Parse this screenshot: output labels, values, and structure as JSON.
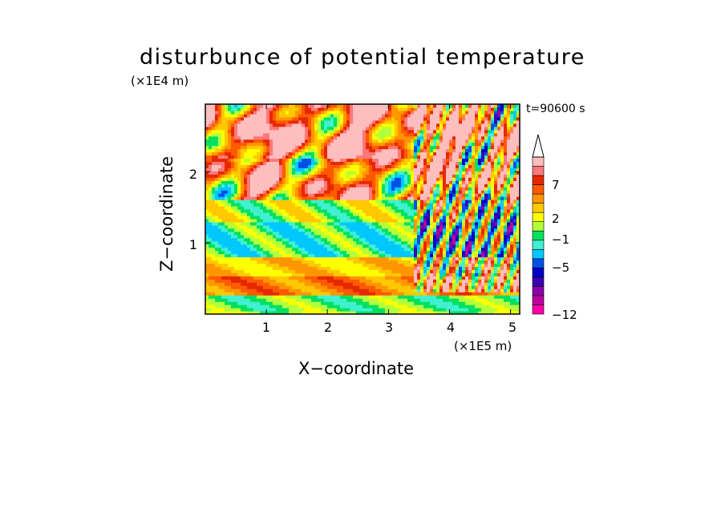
{
  "chart_data": {
    "type": "heatmap",
    "title": "disturbunce of potential temperature",
    "time_label": "t=90600 s",
    "xlabel": "X−coordinate",
    "ylabel": "Z−coordinate",
    "x_unit": "(×1E5 m)",
    "z_unit": "(×1E4 m)",
    "xlim": [
      0,
      5.15
    ],
    "zlim": [
      0,
      2.95
    ],
    "x_ticks": [
      "1",
      "2",
      "3",
      "4",
      "5"
    ],
    "z_ticks": [
      "1",
      "2"
    ],
    "colorbar": {
      "colors": [
        "#ff00a8",
        "#c0009c",
        "#8b00a8",
        "#3c00b4",
        "#0000c8",
        "#0050e6",
        "#00c8ff",
        "#40f0d0",
        "#00e060",
        "#b4ff3c",
        "#ffff00",
        "#ffc800",
        "#ff9600",
        "#ff5a00",
        "#e62800",
        "#ff7878",
        "#ffbebe"
      ],
      "tick_labels": [
        "7",
        "2",
        "−1",
        "−5",
        "−12"
      ],
      "extend_max": true
    },
    "field_levels": [
      {
        "z_range": [
          0.05,
          0.25
        ],
        "value": -1
      },
      {
        "z_range": [
          0.25,
          0.55
        ],
        "value": 4
      },
      {
        "z_range": [
          0.55,
          0.8
        ],
        "value": 2
      },
      {
        "z_range": [
          0.8,
          1.3
        ],
        "value": -2
      },
      {
        "z_range": [
          1.3,
          1.6
        ],
        "value": 0
      },
      {
        "z_range": [
          1.6,
          2.2
        ],
        "value": 4
      },
      {
        "z_range": [
          2.2,
          2.95
        ],
        "value": 6
      }
    ]
  }
}
